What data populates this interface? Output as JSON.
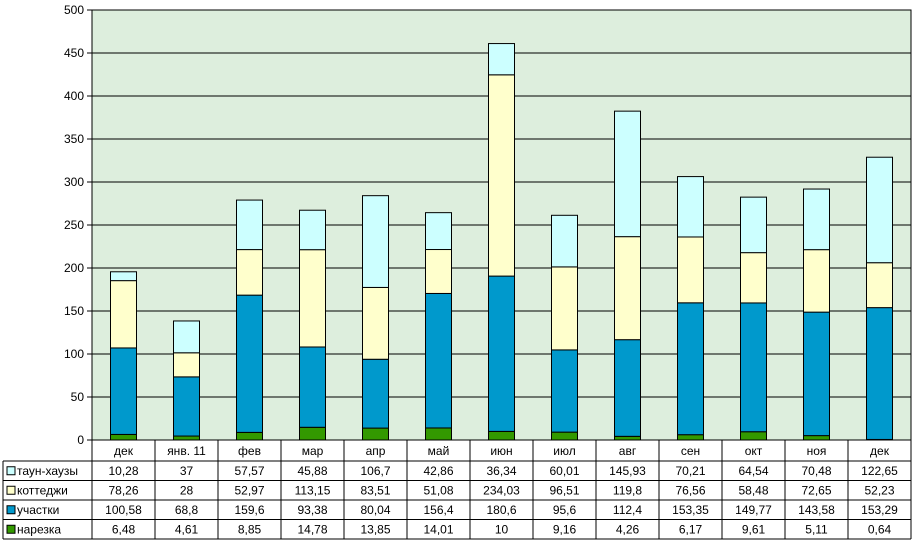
{
  "chart_data": {
    "type": "bar",
    "stacked": true,
    "data_table": true,
    "grid": true,
    "legend_position": "data-table-left",
    "ylim": [
      0,
      500
    ],
    "yticks": [
      "0",
      "50",
      "100",
      "150",
      "200",
      "250",
      "300",
      "350",
      "400",
      "450",
      "500"
    ],
    "categories": [
      "дек",
      "янв. 11",
      "фев",
      "мар",
      "апр",
      "май",
      "июн",
      "июл",
      "авг",
      "сен",
      "окт",
      "ноя",
      "дек"
    ],
    "series": [
      {
        "name": "таун-хаузы",
        "color": "#CCFFFF",
        "values": [
          10.28,
          37,
          57.57,
          45.88,
          106.7,
          42.86,
          36.34,
          60.01,
          145.93,
          70.21,
          64.54,
          70.48,
          122.65
        ],
        "labels": [
          "10,28",
          "37",
          "57,57",
          "45,88",
          "106,7",
          "42,86",
          "36,34",
          "60,01",
          "145,93",
          "70,21",
          "64,54",
          "70,48",
          "122,65"
        ]
      },
      {
        "name": "коттеджи",
        "color": "#FFFFCC",
        "values": [
          78.26,
          28,
          52.97,
          113.15,
          83.51,
          51.08,
          234.03,
          96.51,
          119.8,
          76.56,
          58.48,
          72.65,
          52.23
        ],
        "labels": [
          "78,26",
          "28",
          "52,97",
          "113,15",
          "83,51",
          "51,08",
          "234,03",
          "96,51",
          "119,8",
          "76,56",
          "58,48",
          "72,65",
          "52,23"
        ]
      },
      {
        "name": "участки",
        "color": "#0099CC",
        "values": [
          100.58,
          68.8,
          159.6,
          93.38,
          80.04,
          156.4,
          180.6,
          95.6,
          112.4,
          153.35,
          149.77,
          143.58,
          153.29
        ],
        "labels": [
          "100,58",
          "68,8",
          "159,6",
          "93,38",
          "80,04",
          "156,4",
          "180,6",
          "95,6",
          "112,4",
          "153,35",
          "149,77",
          "143,58",
          "153,29"
        ]
      },
      {
        "name": "нарезка",
        "color": "#339900",
        "values": [
          6.48,
          4.61,
          8.85,
          14.78,
          13.85,
          14.01,
          10,
          9.16,
          4.26,
          6.17,
          9.61,
          5.11,
          0.64
        ],
        "labels": [
          "6,48",
          "4,61",
          "8,85",
          "14,78",
          "13,85",
          "14,01",
          "10",
          "9,16",
          "4,26",
          "6,17",
          "9,61",
          "5,11",
          "0,64"
        ]
      }
    ],
    "stack_order_bottom_to_top": [
      "нарезка",
      "участки",
      "коттеджи",
      "таун-хаузы"
    ],
    "plot_background": "#DDEEDD"
  }
}
